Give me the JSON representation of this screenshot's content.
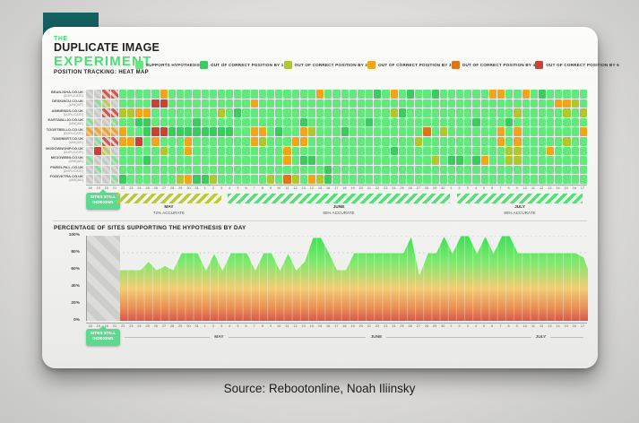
{
  "page": {
    "source_caption": "Source: Rebootonline, Noah Iliinsky"
  },
  "header": {
    "brand_the": "THE",
    "brand_line1": "DUPLICATE IMAGE",
    "brand_line2": "EXPERIMENT",
    "subtitle": "POSITION TRACKING: HEAT MAP"
  },
  "legend": {
    "items": [
      {
        "label": "SUPPORTS HYPOTHESIS",
        "color": "#63e87e"
      },
      {
        "label": "OUT OF CORRECT POSITION BY 1",
        "color": "#3bcb60"
      },
      {
        "label": "OUT OF CORRECT POSITION BY 2",
        "color": "#aec92f"
      },
      {
        "label": "OUT OF CORRECT POSITION BY 3",
        "color": "#f1a51c"
      },
      {
        "label": "OUT OF CORRECT POSITION BY 4",
        "color": "#e0741e"
      },
      {
        "label": "OUT OF CORRECT POSITION BY 5",
        "color": "#c8423a"
      }
    ]
  },
  "chart_data": [
    {
      "type": "heatmap",
      "title": "POSITION TRACKING: HEAT MAP",
      "indexing_badge": "SITES STILL INDEXING",
      "x_days": [
        18,
        19,
        20,
        21,
        22,
        23,
        24,
        25,
        26,
        27,
        28,
        29,
        30,
        31,
        1,
        2,
        3,
        4,
        5,
        6,
        7,
        8,
        9,
        10,
        11,
        12,
        13,
        14,
        15,
        16,
        17,
        18,
        19,
        20,
        21,
        22,
        23,
        24,
        25,
        26,
        27,
        28,
        29,
        30,
        1,
        2,
        3,
        4,
        5,
        6,
        7,
        8,
        9,
        10,
        11,
        12,
        13,
        14,
        15,
        16,
        17
      ],
      "cell_code_legend": {
        "g": "SUPPORTS HYPOTHESIS",
        "G": "OUT OF CORRECT POSITION BY 1",
        "2": "OUT OF CORRECT POSITION BY 2",
        "3": "OUT OF CORRECT POSITION BY 3",
        "4": "OUT OF CORRECT POSITION BY 4",
        "5": "OUT OF CORRECT POSITION BY 5",
        ".": "STILL INDEXING (GREY HATCH)",
        "h": "INDEXING (GREEN HATCH)",
        "y": "INDEXING (OLIVE HATCH)",
        "r": "INDEXING (RED HATCH)",
        "o": "INDEXING (ORANGE HATCH)"
      },
      "colors": {
        "g": "#63e87e",
        "G": "#3bcb60",
        "2": "#aec92f",
        "3": "#f1a51c",
        "4": "#e0741e",
        "5": "#c8423a"
      },
      "rows": [
        {
          "site": "BEANJSHA.CO.UK",
          "variant": "(DUPLICATE)",
          "cells": "..rrggggg3gggggggggggggggggg3ggggggGg3gGggGgggggg33gg3gGggggg"
        },
        {
          "site": "DESKINCU.CO.UK",
          "variant": "(UNIQUE)",
          "cells": ".hy.gggg55gggggggggg3gggggggggggggggggggggggggggggggggggg332g"
        },
        {
          "site": "AMBIENDS.CO.UK",
          "variant": "(DUPLICATE)",
          "cells": "..rr2233gggggggg2gGgggggggggggggggggg2Gggggggggggggg2ggggg2g2"
        },
        {
          "site": "EARTABLLIO.CO.UK",
          "variant": "(UNIQUE)",
          "cells": "h..hggGGgggggGggggggggggggGgggggggGggggggggggggGgggGggggggggg"
        },
        {
          "site": "TOOETBELLO.CO.UK",
          "variant": "(DUPLICATE)",
          "cells": "oooo3ggG55GGGGGGGGgg33gGgg32gggGggggggggg4g2gggggg3g3ggggggg3"
        },
        {
          "site": "TANDBERT.CO.UK",
          "variant": "(UNIQUE)",
          "cells": ".hrr335g3ggg3ggggggg32ggg33ggggggggggggg2ggggggggg3g3ggggg2gg"
        },
        {
          "site": "MODOWNSHIP.CO.UK",
          "variant": "(DUPLICATE)",
          "cells": ".5y.ggggg2gg3ggggggggggg3ggggggggggggGggggggggggggg22ggg3gggg"
        },
        {
          "site": "MICIGWBNI.CO.UK",
          "variant": "(UNIQUE)",
          "cells": "h..hgggGgggggggggggggggg3gGGgggggggggggggg2gGGgG3gg22gggggggg"
        },
        {
          "site": "PWEELPILL.CO.UK",
          "variant": "(DUPLICATE)",
          "cells": ".h..gggggggggggggggggggggggggGgggggggggggggggggggggggggggggg"
        },
        {
          "site": "FODIVKTRA.CO.UK",
          "variant": "(UNIQUE)",
          "cells": "...hGgggggg23GG2gggggg2g42g32Ggggggggggggggggggggggggggggggg"
        }
      ],
      "periods": [
        {
          "month": "MAY",
          "accuracy": "72% ACCURATE"
        },
        {
          "month": "JUNE",
          "accuracy": "85% ACCURATE"
        },
        {
          "month": "JULY",
          "accuracy": "85% ACCURATE"
        }
      ]
    },
    {
      "type": "area",
      "title": "PERCENTAGE OF SITES SUPPORTING THE HYPOTHESIS BY DAY",
      "indexing_badge": "SITES STILL INDEXING",
      "x_days": [
        18,
        19,
        20,
        21,
        22,
        23,
        24,
        25,
        26,
        27,
        28,
        29,
        30,
        31,
        1,
        2,
        3,
        4,
        5,
        6,
        7,
        8,
        9,
        10,
        11,
        12,
        13,
        14,
        15,
        16,
        17,
        18,
        19,
        20,
        21,
        22,
        23,
        24,
        25,
        26,
        27,
        28,
        29,
        30,
        1,
        2,
        3,
        4,
        5,
        6,
        7,
        8,
        9,
        10,
        11,
        12,
        13,
        14,
        15,
        16,
        17
      ],
      "values": [
        null,
        null,
        null,
        null,
        60,
        60,
        60,
        70,
        60,
        65,
        60,
        80,
        80,
        80,
        60,
        80,
        60,
        80,
        80,
        80,
        60,
        80,
        80,
        60,
        80,
        60,
        70,
        98,
        98,
        80,
        60,
        60,
        80,
        80,
        80,
        80,
        80,
        80,
        80,
        100,
        55,
        80,
        80,
        100,
        80,
        100,
        100,
        80,
        100,
        80,
        100,
        100,
        80,
        80,
        80,
        80,
        80,
        80,
        80,
        80,
        75
      ],
      "ylim": [
        0,
        100
      ],
      "yticks": [
        "100%",
        "80%",
        "60%",
        "40%",
        "20%",
        "0%"
      ],
      "months": [
        "MAY",
        "JUNE",
        "JULY"
      ],
      "grid": "horizontal dotted at 20% steps, vertical per-day lines inside area",
      "note": "First 4 days hatched grey - sites still indexing"
    }
  ]
}
